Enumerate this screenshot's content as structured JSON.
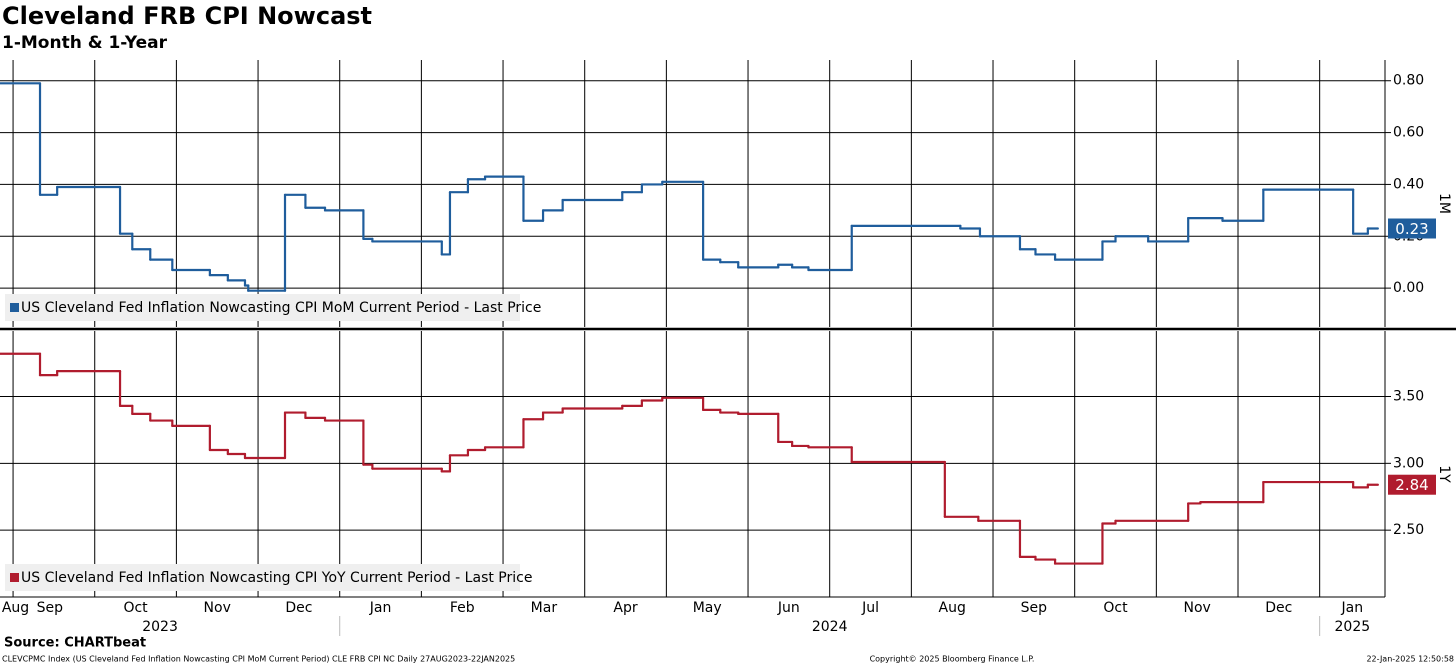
{
  "chart_data": {
    "type": "line",
    "step": "post",
    "title": "Cleveland FRB CPI Nowcast",
    "subtitle": "1-Month & 1-Year",
    "source": "Source: CHARTbeat",
    "footer_left": "CLEVCPMC Index (US Cleveland Fed Inflation Nowcasting CPI MoM Current Period) CLE FRB CPI NC  Daily 27AUG2023-22JAN2025",
    "footer_center": "Copyright© 2025 Bloomberg Finance L.P.",
    "footer_right": "22-Jan-2025 12:50:58",
    "xlim": [
      -0.16,
      16.8
    ],
    "xgrid": [
      0,
      1,
      2,
      3,
      4,
      5,
      6,
      7,
      8,
      9,
      10,
      11,
      12,
      13,
      14,
      15,
      16
    ],
    "xticks": [
      {
        "value": 0.03,
        "label": "Aug"
      },
      {
        "value": 0.45,
        "label": "Sep"
      },
      {
        "value": 1.5,
        "label": "Oct"
      },
      {
        "value": 2.5,
        "label": "Nov"
      },
      {
        "value": 3.5,
        "label": "Dec"
      },
      {
        "value": 4.5,
        "label": "Jan"
      },
      {
        "value": 5.5,
        "label": "Feb"
      },
      {
        "value": 6.5,
        "label": "Mar"
      },
      {
        "value": 7.5,
        "label": "Apr"
      },
      {
        "value": 8.5,
        "label": "May"
      },
      {
        "value": 9.5,
        "label": "Jun"
      },
      {
        "value": 10.5,
        "label": "Jul"
      },
      {
        "value": 11.5,
        "label": "Aug"
      },
      {
        "value": 12.5,
        "label": "Sep"
      },
      {
        "value": 13.5,
        "label": "Oct"
      },
      {
        "value": 14.5,
        "label": "Nov"
      },
      {
        "value": 15.5,
        "label": "Dec"
      },
      {
        "value": 16.4,
        "label": "Jan"
      }
    ],
    "year_ticks": [
      {
        "value": 1.8,
        "label": "2023"
      },
      {
        "value": 10,
        "label": "2024"
      },
      {
        "value": 16.4,
        "label": "2025"
      }
    ],
    "year_breaks": [
      4,
      16
    ],
    "grid": true,
    "panels": [
      {
        "axis_label": "1M",
        "ylim": [
          -0.15,
          0.88
        ],
        "yticks": [
          {
            "value": 0,
            "label": "0.00"
          },
          {
            "value": 0.2,
            "label": "0.20"
          },
          {
            "value": 0.4,
            "label": "0.40"
          },
          {
            "value": 0.6,
            "label": "0.60"
          },
          {
            "value": 0.8,
            "label": "0.80"
          }
        ],
        "series": [
          {
            "name": "US Cleveland Fed Inflation Nowcasting CPI MoM Current Period - Last Price",
            "color": "#1f5d9c",
            "x": [
              -0.16,
              0.33,
              0.54,
              1.31,
              1.46,
              1.68,
              1.95,
              2.41,
              2.63,
              2.84,
              2.88,
              3.33,
              3.58,
              3.82,
              4.29,
              4.4,
              5.25,
              5.35,
              5.57,
              5.78,
              6.25,
              6.49,
              6.73,
              7.46,
              7.7,
              7.95,
              8.45,
              8.66,
              8.88,
              9.37,
              9.54,
              9.74,
              10.27,
              11.6,
              11.84,
              12.33,
              12.52,
              12.76,
              13.34,
              13.5,
              13.9,
              14.39,
              14.81,
              15.31,
              16.41,
              16.59
            ],
            "values": [
              0.79,
              0.36,
              0.39,
              0.21,
              0.15,
              0.11,
              0.07,
              0.05,
              0.03,
              0.01,
              -0.01,
              0.36,
              0.31,
              0.3,
              0.19,
              0.18,
              0.13,
              0.37,
              0.42,
              0.43,
              0.26,
              0.3,
              0.34,
              0.37,
              0.4,
              0.41,
              0.11,
              0.1,
              0.08,
              0.09,
              0.08,
              0.07,
              0.24,
              0.23,
              0.2,
              0.15,
              0.13,
              0.11,
              0.18,
              0.2,
              0.18,
              0.27,
              0.26,
              0.38,
              0.21,
              0.23
            ]
          }
        ]
      },
      {
        "axis_label": "1Y",
        "ylim": [
          2.0,
          3.99
        ],
        "yticks": [
          {
            "value": 2.5,
            "label": "2.50"
          },
          {
            "value": 3,
            "label": "3.00"
          },
          {
            "value": 3.5,
            "label": "3.50"
          }
        ],
        "series": [
          {
            "name": "US Cleveland Fed Inflation Nowcasting CPI YoY Current Period - Last Price",
            "color": "#b01c2e",
            "x": [
              -0.16,
              0.33,
              0.54,
              1.31,
              1.46,
              1.68,
              1.95,
              2.41,
              2.63,
              2.84,
              3.33,
              3.58,
              3.82,
              4.29,
              4.4,
              5.25,
              5.35,
              5.57,
              5.78,
              6.25,
              6.49,
              6.73,
              7.46,
              7.7,
              7.95,
              8.45,
              8.66,
              8.88,
              9.37,
              9.54,
              9.74,
              10.27,
              11.41,
              11.82,
              12.33,
              12.52,
              12.76,
              13.34,
              13.5,
              14.39,
              14.54,
              15.31,
              16.41,
              16.59
            ],
            "values": [
              3.82,
              3.66,
              3.69,
              3.43,
              3.37,
              3.32,
              3.28,
              3.1,
              3.07,
              3.04,
              3.38,
              3.34,
              3.32,
              2.99,
              2.96,
              2.94,
              3.06,
              3.1,
              3.12,
              3.33,
              3.38,
              3.41,
              3.43,
              3.47,
              3.49,
              3.4,
              3.38,
              3.37,
              3.16,
              3.13,
              3.12,
              3.01,
              2.6,
              2.57,
              2.3,
              2.28,
              2.25,
              2.55,
              2.57,
              2.7,
              2.71,
              2.86,
              2.82,
              2.84
            ]
          }
        ]
      }
    ]
  }
}
